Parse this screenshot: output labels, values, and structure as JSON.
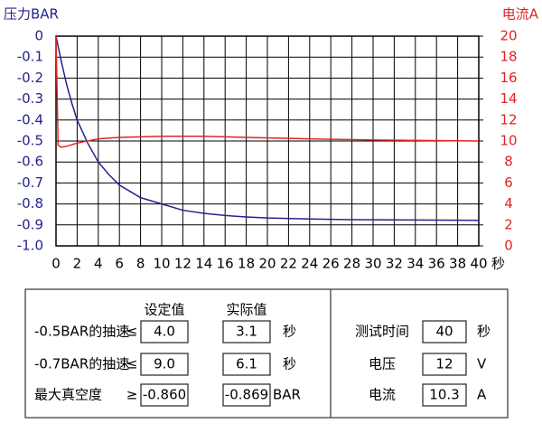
{
  "chart_data": {
    "type": "line",
    "y_label": "压力BAR",
    "y2_label": "电流A",
    "x_unit": "秒",
    "xlim": [
      0,
      40
    ],
    "xticks": [
      0,
      2,
      4,
      6,
      8,
      10,
      12,
      14,
      16,
      18,
      20,
      22,
      24,
      26,
      28,
      30,
      32,
      34,
      36,
      38,
      40
    ],
    "ylim": [
      -1.0,
      0
    ],
    "yticks": [
      0,
      -0.1,
      -0.2,
      -0.3,
      -0.4,
      -0.5,
      -0.6,
      -0.7,
      -0.8,
      -0.9,
      {
        "value": -1.0,
        "label": "-1.0"
      }
    ],
    "y2lim": [
      0,
      20
    ],
    "y2ticks": [
      0,
      2,
      4,
      6,
      8,
      10,
      12,
      14,
      16,
      18,
      20
    ],
    "grid": true,
    "series": [
      {
        "color": "#23238f",
        "axis": "y",
        "x": [
          0,
          0.5,
          1,
          1.5,
          2,
          3,
          4,
          5,
          6,
          7,
          8,
          10,
          12,
          14,
          16,
          18,
          20,
          24,
          28,
          32,
          36,
          40
        ],
        "values": [
          0,
          -0.12,
          -0.23,
          -0.32,
          -0.4,
          -0.51,
          -0.6,
          -0.66,
          -0.71,
          -0.74,
          -0.77,
          -0.8,
          -0.83,
          -0.845,
          -0.855,
          -0.862,
          -0.867,
          -0.872,
          -0.875,
          -0.876,
          -0.877,
          -0.878
        ]
      },
      {
        "color": "#e02424",
        "axis": "y2",
        "x": [
          0,
          0.2,
          0.5,
          1,
          2,
          4,
          6,
          8,
          10,
          14,
          18,
          24,
          30,
          40
        ],
        "values": [
          20,
          9.6,
          9.4,
          9.5,
          9.8,
          10.2,
          10.35,
          10.4,
          10.45,
          10.45,
          10.35,
          10.2,
          10.1,
          10.0
        ]
      }
    ]
  },
  "panel": {
    "columns": [
      "设定值",
      "实际值"
    ],
    "rows": [
      {
        "label": "-0.5BAR的抽速",
        "op": "≤",
        "set": "4.0",
        "actual": "3.1",
        "unit": "秒"
      },
      {
        "label": "-0.7BAR的抽速",
        "op": "≤",
        "set": "9.0",
        "actual": "6.1",
        "unit": "秒"
      },
      {
        "label": "最大真空度",
        "op": "≥",
        "set": "-0.860",
        "actual": "-0.869",
        "unit": "BAR"
      }
    ],
    "status": [
      {
        "label": "测试时间",
        "value": "40",
        "unit": "秒"
      },
      {
        "label": "电压",
        "value": "12",
        "unit": "V"
      },
      {
        "label": "电流",
        "value": "10.3",
        "unit": "A"
      }
    ]
  }
}
